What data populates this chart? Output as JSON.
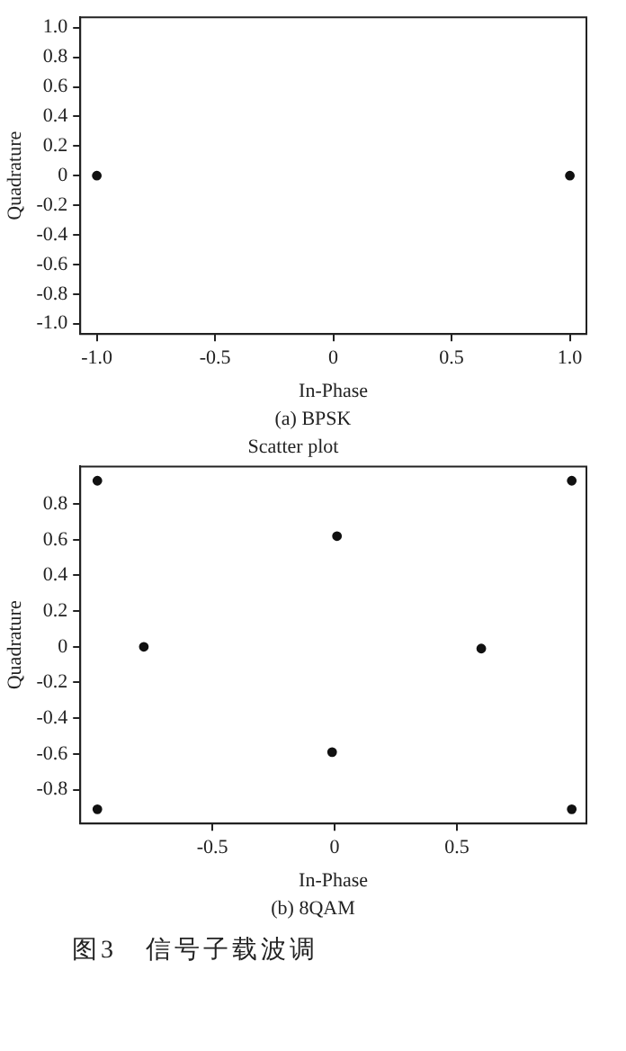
{
  "chart_data": [
    {
      "type": "scatter",
      "xlabel": "In-Phase",
      "ylabel": "Quadrature",
      "series": [
        {
          "color": "#111111",
          "x": [
            -1,
            1
          ],
          "values": [
            0,
            0
          ]
        }
      ],
      "xlim": [
        -1.07,
        1.07
      ],
      "xticks": [
        {
          "value": -1,
          "label": "-1.0"
        },
        -0.5,
        0,
        0.5,
        {
          "value": 1,
          "label": "1.0"
        }
      ],
      "ylim": [
        -1.07,
        1.07
      ],
      "yticks": [
        {
          "value": -1,
          "label": "-1.0"
        },
        -0.8,
        -0.6,
        -0.4,
        -0.2,
        0,
        0.2,
        0.4,
        0.6,
        0.8,
        {
          "value": 1,
          "label": "1.0"
        }
      ],
      "grid": false,
      "legend": false,
      "marker": "circle",
      "annotations": [
        "(a)  BPSK"
      ]
    },
    {
      "type": "scatter",
      "title": "Scatter plot",
      "xlabel": "In-Phase",
      "ylabel": "Quadrature",
      "series": [
        {
          "color": "#111111",
          "x": [
            -0.97,
            0.97,
            0.01,
            -0.78,
            0.6,
            -0.01,
            -0.97,
            0.97
          ],
          "values": [
            0.93,
            0.93,
            0.62,
            0,
            -0.01,
            -0.59,
            -0.91,
            -0.91
          ]
        }
      ],
      "xlim": [
        -1.04,
        1.03
      ],
      "xticks": [
        -0.5,
        0,
        0.5
      ],
      "ylim": [
        -0.99,
        1.01
      ],
      "yticks": [
        -0.8,
        -0.6,
        -0.4,
        -0.2,
        0,
        0.2,
        0.4,
        0.6,
        0.8
      ],
      "grid": false,
      "legend": false,
      "marker": "circle",
      "annotations": [
        "(b)  8QAM",
        "图3　信号子载波调"
      ]
    }
  ]
}
